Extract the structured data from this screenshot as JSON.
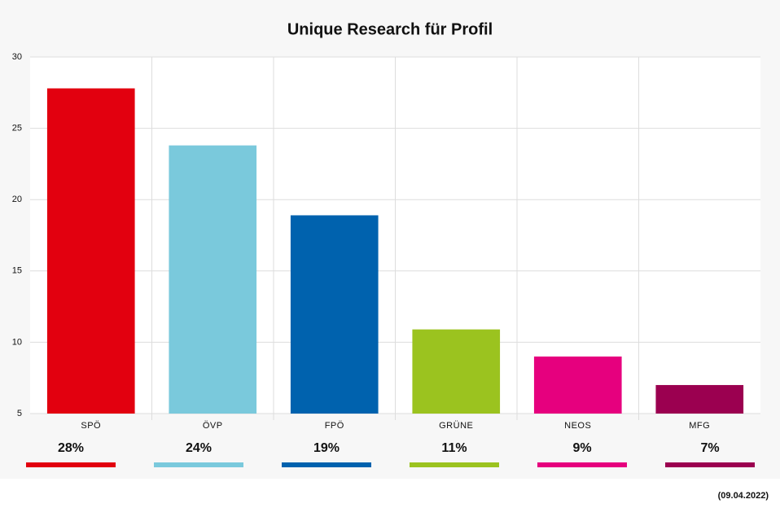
{
  "chart_data": {
    "type": "bar",
    "title": "Unique Research für Profil",
    "categories": [
      "SPÖ",
      "ÖVP",
      "FPÖ",
      "GRÜNE",
      "NEOS",
      "MFG"
    ],
    "values": [
      27.8,
      23.8,
      18.9,
      10.9,
      9,
      7
    ],
    "value_labels": [
      "28%",
      "24%",
      "19%",
      "11%",
      "9%",
      "7%"
    ],
    "colors": [
      "#e2000f",
      "#7ac9dc",
      "#0062ae",
      "#9bc31f",
      "#e6007e",
      "#9b0050"
    ],
    "ylim": [
      5,
      30
    ],
    "yticks": [
      5,
      10,
      15,
      20,
      25,
      30
    ],
    "grid": true,
    "note": "(09.04.2022)"
  }
}
